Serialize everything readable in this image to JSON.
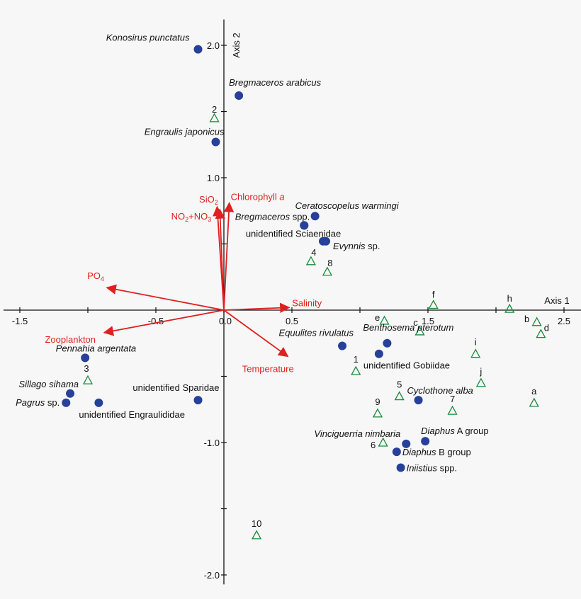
{
  "chart_data": {
    "type": "scatter",
    "x_axis": {
      "label": "Axis 1",
      "ticks": [
        -1.5,
        -0.5,
        0.0,
        0.5,
        1.5,
        2.5
      ],
      "tick_labels": [
        "-1.5",
        "-0.5",
        "0.0",
        "0.5",
        "1.5",
        "2.5"
      ],
      "range": [
        -1.62,
        2.58
      ]
    },
    "y_axis": {
      "label": "Axis 2",
      "ticks": [
        2.0,
        1.0,
        -1.0,
        -2.0
      ],
      "tick_labels": [
        "2.0",
        "1.0",
        "-1.0",
        "-2.0"
      ],
      "range": [
        -2.05,
        2.12
      ]
    },
    "species": [
      {
        "name": "Konosirus punctatus",
        "italic": true,
        "x": -0.19,
        "y": 1.97,
        "anchor": "end",
        "dx": -12,
        "dy": -12
      },
      {
        "name": "Bregmaceros arabicus",
        "italic": true,
        "x": 0.11,
        "y": 1.62,
        "anchor": "start",
        "dx": -14,
        "dy": -14
      },
      {
        "name": "Engraulis japonicus",
        "italic": true,
        "x": -0.06,
        "y": 1.27,
        "anchor": "end",
        "dx": 12,
        "dy": -10
      },
      {
        "name": "Ceratoscopelus warmingi",
        "italic": true,
        "x": 0.67,
        "y": 0.71,
        "anchor": "start",
        "dx": -28,
        "dy": -10
      },
      {
        "name": "Bregmaceros",
        "suffix": " spp.",
        "italic": true,
        "x": 0.59,
        "y": 0.64,
        "anchor": "end",
        "dx": 8,
        "dy": -8
      },
      {
        "name": "unidentified Sciaenidae",
        "italic": false,
        "x": 0.59,
        "y": 0.64,
        "anchor": "end",
        "dx": 52,
        "dy": 16
      },
      {
        "name": "Evynnis",
        "suffix": " sp.",
        "italic": true,
        "x": 0.75,
        "y": 0.52,
        "anchor": "start",
        "dx": 10,
        "dy": 11
      },
      {
        "name": "Equulites rivulatus",
        "italic": true,
        "x": 0.87,
        "y": -0.27,
        "anchor": "end",
        "dx": 16,
        "dy": -14
      },
      {
        "name": "Benthosema pterotum",
        "italic": true,
        "x": 1.2,
        "y": -0.25,
        "anchor": "start",
        "dx": -34,
        "dy": -18
      },
      {
        "name": "unidentified Gobiidae",
        "italic": false,
        "x": 1.14,
        "y": -0.33,
        "anchor": "start",
        "dx": -22,
        "dy": 21
      },
      {
        "name": "Cyclothone alba",
        "italic": true,
        "x": 1.43,
        "y": -0.68,
        "anchor": "start",
        "dx": -16,
        "dy": -9
      },
      {
        "name": "Pennahia argentata",
        "italic": true,
        "x": -1.02,
        "y": -0.36,
        "anchor": "end",
        "dx": 72,
        "dy": -9
      },
      {
        "name": "Sillago sihama",
        "italic": true,
        "x": -1.13,
        "y": -0.63,
        "anchor": "end",
        "dx": 12,
        "dy": -9
      },
      {
        "name": "Pagrus",
        "suffix": " sp.",
        "italic": true,
        "x": -1.16,
        "y": -0.7,
        "anchor": "end",
        "dx": -9,
        "dy": 4
      },
      {
        "name": "unidentified Engraulididae",
        "italic": false,
        "x": -0.92,
        "y": -0.7,
        "anchor": "start",
        "dx": -28,
        "dy": 21
      },
      {
        "name": "unidentified Sparidae",
        "italic": false,
        "x": -0.19,
        "y": -0.68,
        "anchor": "end",
        "dx": 30,
        "dy": -13
      },
      {
        "name": "Vinciguerria nimbaria",
        "italic": true,
        "x": 1.34,
        "y": -1.01,
        "anchor": "end",
        "dx": -8,
        "dy": -10
      },
      {
        "name": "Diaphus",
        "suffix": " A group",
        "italic": true,
        "x": 1.48,
        "y": -0.99,
        "anchor": "start",
        "dx": -6,
        "dy": -10
      },
      {
        "name": "Diaphus",
        "suffix": " B group",
        "italic": true,
        "x": 1.27,
        "y": -1.07,
        "anchor": "start",
        "dx": 8,
        "dy": 5
      },
      {
        "name": "Iniistius",
        "suffix": " spp.",
        "italic": true,
        "x": 1.3,
        "y": -1.19,
        "anchor": "start",
        "dx": 8,
        "dy": 5
      }
    ],
    "sites": [
      {
        "name": "2",
        "x": -0.07,
        "y": 1.45,
        "dx": 0,
        "dy": -8
      },
      {
        "name": "4",
        "x": 0.64,
        "y": 0.37,
        "dx": 4,
        "dy": -8
      },
      {
        "name": "8",
        "x": 0.76,
        "y": 0.29,
        "dx": 4,
        "dy": -8
      },
      {
        "name": "f",
        "x": 1.54,
        "y": 0.04,
        "dx": 0,
        "dy": -10
      },
      {
        "name": "h",
        "x": 2.1,
        "y": 0.01,
        "dx": 0,
        "dy": -10
      },
      {
        "name": "e",
        "x": 1.18,
        "y": -0.08,
        "dx": -10,
        "dy": 0
      },
      {
        "name": "c",
        "x": 1.44,
        "y": -0.16,
        "dx": -6,
        "dy": -8
      },
      {
        "name": "b",
        "x": 2.3,
        "y": -0.09,
        "dx": -14,
        "dy": 0
      },
      {
        "name": "d",
        "x": 2.33,
        "y": -0.18,
        "dx": 8,
        "dy": -4
      },
      {
        "name": "i",
        "x": 1.85,
        "y": -0.33,
        "dx": 0,
        "dy": -12
      },
      {
        "name": "1",
        "x": 0.97,
        "y": -0.46,
        "dx": 0,
        "dy": -12
      },
      {
        "name": "3",
        "x": -1.0,
        "y": -0.53,
        "dx": -2,
        "dy": -12
      },
      {
        "name": "j",
        "x": 1.89,
        "y": -0.55,
        "dx": 0,
        "dy": -12
      },
      {
        "name": "5",
        "x": 1.29,
        "y": -0.65,
        "dx": 0,
        "dy": -12
      },
      {
        "name": "a",
        "x": 2.28,
        "y": -0.7,
        "dx": 0,
        "dy": -12
      },
      {
        "name": "7",
        "x": 1.68,
        "y": -0.76,
        "dx": 0,
        "dy": -12
      },
      {
        "name": "9",
        "x": 1.13,
        "y": -0.78,
        "dx": 0,
        "dy": -12
      },
      {
        "name": "6",
        "x": 1.17,
        "y": -1.0,
        "dx": -14,
        "dy": 8
      },
      {
        "name": "10",
        "x": 0.24,
        "y": -1.7,
        "dx": 0,
        "dy": -12
      }
    ],
    "environment_vectors": [
      {
        "name": "Chlorophyll",
        "suffix": " a",
        "x": 0.04,
        "y": 0.81,
        "anchor": "start",
        "dx": 2,
        "dy": -4
      },
      {
        "name": "SiO",
        "sub": "2",
        "x": -0.05,
        "y": 0.78,
        "anchor": "middle",
        "dx": -12,
        "dy": -6
      },
      {
        "name": "NO",
        "sub": "2",
        "mid": "+NO",
        "sub2": "3",
        "x": -0.03,
        "y": 0.76,
        "anchor": "end",
        "dx": -12,
        "dy": 14
      },
      {
        "name": "PO",
        "sub": "4",
        "x": -0.86,
        "y": 0.17,
        "anchor": "end",
        "dx": -4,
        "dy": -12
      },
      {
        "name": "Salinity",
        "x": 0.48,
        "y": 0.02,
        "anchor": "start",
        "dx": 4,
        "dy": -2
      },
      {
        "name": "Zooplankton",
        "x": -0.88,
        "y": -0.17,
        "anchor": "end",
        "dx": -12,
        "dy": 14
      },
      {
        "name": "Temperature",
        "x": 0.47,
        "y": -0.35,
        "anchor": "middle",
        "dx": -28,
        "dy": 22
      }
    ]
  }
}
